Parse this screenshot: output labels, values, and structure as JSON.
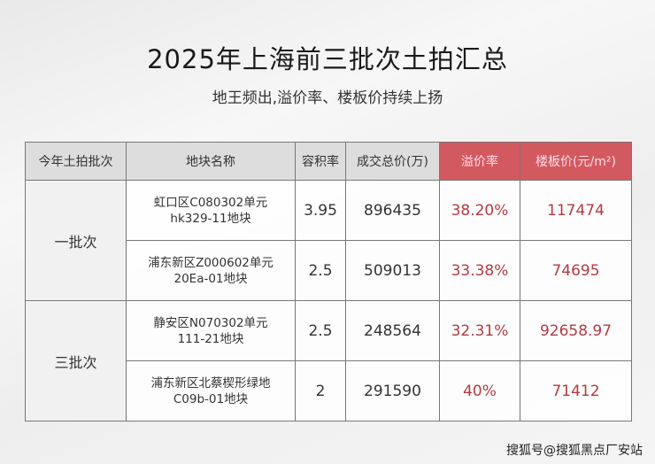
{
  "title": "2025年上海前三批次土拍汇总",
  "subtitle": "地王频出,溢价率、楼板价持续上扬",
  "table": {
    "headers": [
      "今年土拍批次",
      "地块名称",
      "容积率",
      "成交总价(万)",
      "溢价率",
      "楼板价(元/m²)"
    ],
    "groups": [
      {
        "batch": "一批次",
        "rows": [
          {
            "name1": "虹口区C080302单元",
            "name2": "hk329-11地块",
            "far": "3.95",
            "total": "896435",
            "premium": "38.20%",
            "price": "117474"
          },
          {
            "name1": "浦东新区Z000602单元",
            "name2": "20Ea-01地块",
            "far": "2.5",
            "total": "509013",
            "premium": "33.38%",
            "price": "74695"
          }
        ]
      },
      {
        "batch": "三批次",
        "rows": [
          {
            "name1": "静安区N070302单元",
            "name2": "111-21地块",
            "far": "2.5",
            "total": "248564",
            "premium": "32.31%",
            "price": "92658.97"
          },
          {
            "name1": "浦东新区北蔡楔形绿地",
            "name2": "C09b-01地块",
            "far": "2",
            "total": "291590",
            "premium": "40%",
            "price": "71412"
          }
        ]
      }
    ]
  },
  "watermark": "搜狐号@搜狐黑点厂安站",
  "colors": {
    "accent": "#d25a5e",
    "value_red": "#b23b45"
  }
}
